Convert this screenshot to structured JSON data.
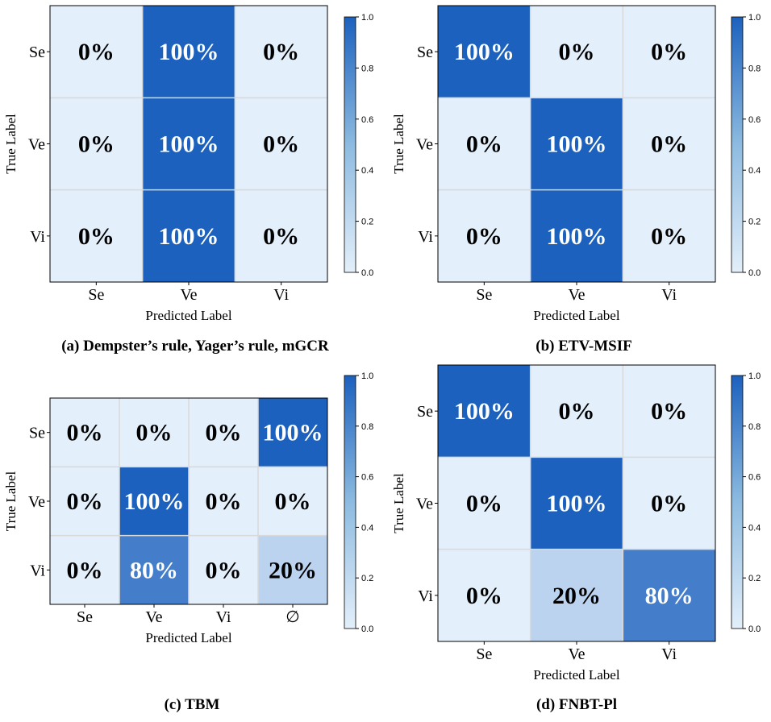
{
  "chart_data": [
    {
      "type": "heatmap",
      "subtitle": "(a) Dempster’s rule, Yager’s rule, mGCR",
      "xlabel": "Predicted Label",
      "ylabel": "True Label",
      "x_categories": [
        "Se",
        "Ve",
        "Vi"
      ],
      "y_categories": [
        "Se",
        "Ve",
        "Vi"
      ],
      "values": [
        [
          0,
          1,
          0
        ],
        [
          0,
          1,
          0
        ],
        [
          0,
          1,
          0
        ]
      ],
      "cell_labels": [
        [
          "0%",
          "100%",
          "0%"
        ],
        [
          "0%",
          "100%",
          "0%"
        ],
        [
          "0%",
          "100%",
          "0%"
        ]
      ],
      "colorbar": {
        "range": [
          0,
          1
        ],
        "ticks": [
          "0.0",
          "0.2",
          "0.4",
          "0.6",
          "0.8",
          "1.0"
        ]
      }
    },
    {
      "type": "heatmap",
      "subtitle": "(b) ETV-MSIF",
      "xlabel": "Predicted Label",
      "ylabel": "True Label",
      "x_categories": [
        "Se",
        "Ve",
        "Vi"
      ],
      "y_categories": [
        "Se",
        "Ve",
        "Vi"
      ],
      "values": [
        [
          1,
          0,
          0
        ],
        [
          0,
          1,
          0
        ],
        [
          0,
          1,
          0
        ]
      ],
      "cell_labels": [
        [
          "100%",
          "0%",
          "0%"
        ],
        [
          "0%",
          "100%",
          "0%"
        ],
        [
          "0%",
          "100%",
          "0%"
        ]
      ],
      "colorbar": {
        "range": [
          0,
          1
        ],
        "ticks": [
          "0.0",
          "0.2",
          "0.4",
          "0.6",
          "0.8",
          "1.0"
        ]
      }
    },
    {
      "type": "heatmap",
      "subtitle": "(c) TBM",
      "xlabel": "Predicted Label",
      "ylabel": "True Label",
      "x_categories": [
        "Se",
        "Ve",
        "Vi",
        "∅"
      ],
      "y_categories": [
        "Se",
        "Ve",
        "Vi"
      ],
      "values": [
        [
          0,
          0,
          0,
          1
        ],
        [
          0,
          1,
          0,
          0
        ],
        [
          0,
          0.8,
          0,
          0.2
        ]
      ],
      "cell_labels": [
        [
          "0%",
          "0%",
          "0%",
          "100%"
        ],
        [
          "0%",
          "100%",
          "0%",
          "0%"
        ],
        [
          "0%",
          "80%",
          "0%",
          "20%"
        ]
      ],
      "colorbar": {
        "range": [
          0,
          1
        ],
        "ticks": [
          "0.0",
          "0.2",
          "0.4",
          "0.6",
          "0.8",
          "1.0"
        ]
      }
    },
    {
      "type": "heatmap",
      "subtitle": "(d) FNBT-Pl",
      "xlabel": "Predicted Label",
      "ylabel": "True Label",
      "x_categories": [
        "Se",
        "Ve",
        "Vi"
      ],
      "y_categories": [
        "Se",
        "Ve",
        "Vi"
      ],
      "values": [
        [
          1,
          0,
          0
        ],
        [
          0,
          1,
          0
        ],
        [
          0,
          0.2,
          0.8
        ]
      ],
      "cell_labels": [
        [
          "100%",
          "0%",
          "0%"
        ],
        [
          "0%",
          "100%",
          "0%"
        ],
        [
          "0%",
          "20%",
          "80%"
        ]
      ],
      "colorbar": {
        "range": [
          0,
          1
        ],
        "ticks": [
          "0.0",
          "0.2",
          "0.4",
          "0.6",
          "0.8",
          "1.0"
        ]
      }
    }
  ],
  "colors": {
    "low": "#e3effa",
    "high": "#1c61be",
    "grid": "#d9d9d9",
    "text_dark": "#000000",
    "text_light": "#ffffff"
  }
}
